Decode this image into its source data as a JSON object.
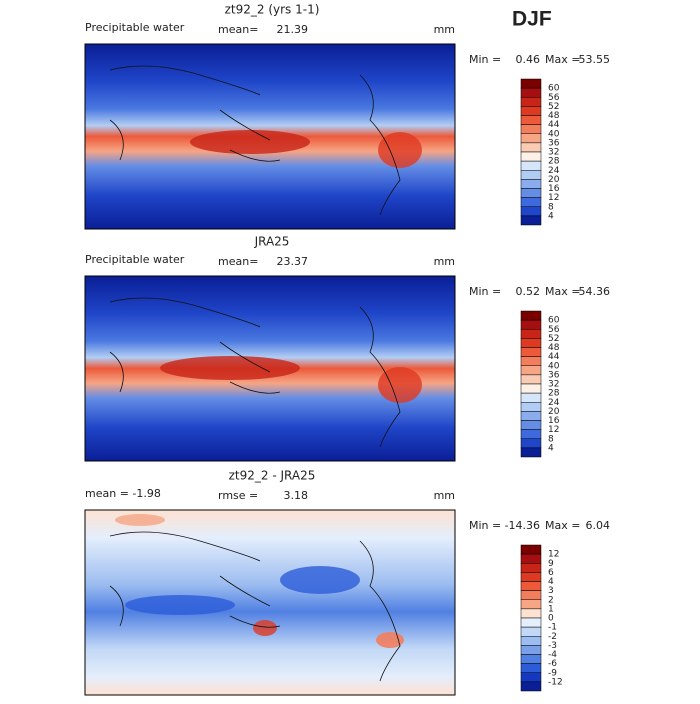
{
  "season": "DJF",
  "panels": [
    {
      "title": "zt92_2 (yrs 1-1)",
      "left": "Precipitable water",
      "center_label": "mean=",
      "center_value": "21.39",
      "units": "mm",
      "min_label": "Min =",
      "min": "0.46",
      "max_label": "Max =",
      "max": "53.55",
      "levels": [
        "60",
        "56",
        "52",
        "48",
        "44",
        "40",
        "36",
        "32",
        "28",
        "24",
        "20",
        "16",
        "12",
        "8",
        "4"
      ],
      "colors": [
        "#7a0000",
        "#a50f0f",
        "#c82418",
        "#de3a22",
        "#ec5a3a",
        "#f27e5e",
        "#f6a585",
        "#facbb4",
        "#fdf0e6",
        "#d6e6fa",
        "#b2cdf4",
        "#8badee",
        "#648de6",
        "#3e6ade",
        "#1f45c8",
        "#0a1e96"
      ]
    },
    {
      "title": "JRA25",
      "left": "Precipitable water",
      "center_label": "mean=",
      "center_value": "23.37",
      "units": "mm",
      "min_label": "Min =",
      "min": "0.52",
      "max_label": "Max =",
      "max": "54.36",
      "levels": [
        "60",
        "56",
        "52",
        "48",
        "44",
        "40",
        "36",
        "32",
        "28",
        "24",
        "20",
        "16",
        "12",
        "8",
        "4"
      ],
      "colors": [
        "#7a0000",
        "#a50f0f",
        "#c82418",
        "#de3a22",
        "#ec5a3a",
        "#f27e5e",
        "#f6a585",
        "#facbb4",
        "#fdf0e6",
        "#d6e6fa",
        "#b2cdf4",
        "#8badee",
        "#648de6",
        "#3e6ade",
        "#1f45c8",
        "#0a1e96"
      ]
    },
    {
      "title": "zt92_2 - JRA25",
      "left": "mean =   -1.98",
      "center_label": "rmse =",
      "center_value": "3.18",
      "units": "mm",
      "min_label": "Min =",
      "min": "-14.36",
      "max_label": "Max =",
      "max": "6.04",
      "levels": [
        "12",
        "9",
        "6",
        "4",
        "3",
        "2",
        "1",
        "0",
        "-1",
        "-2",
        "-3",
        "-4",
        "-6",
        "-9",
        "-12"
      ],
      "colors": [
        "#7a0000",
        "#a50f0f",
        "#c82418",
        "#de3a22",
        "#ec5a3a",
        "#f27e5e",
        "#f6a585",
        "#fde2d2",
        "#e4eefc",
        "#c2d8f6",
        "#9dbdf0",
        "#7aa0ea",
        "#5080e2",
        "#2c5cd8",
        "#1438c0",
        "#0a1e96"
      ]
    }
  ]
}
